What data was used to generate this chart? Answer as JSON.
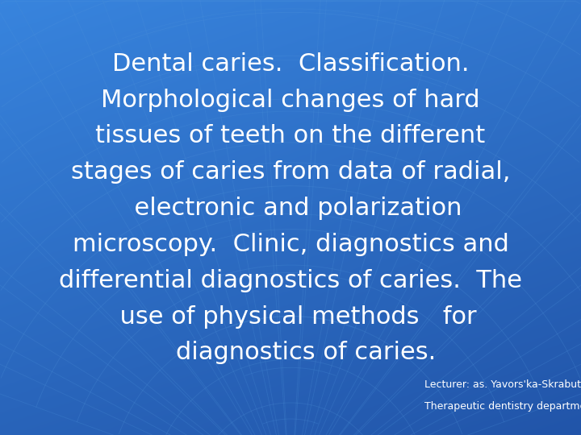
{
  "main_text_lines": [
    "Dental caries.  Classification.",
    "Morphological changes of hard",
    "tissues of teeth on the different",
    "stages of caries from data of radial,",
    "  electronic and polarization",
    "microscopy.  Clinic, diagnostics and",
    "differential diagnostics of caries.  The",
    "  use of physical methods   for",
    "    diagnostics of caries."
  ],
  "footnote_line1": "Lecturer: as. Yavors'ka-Skrabut I.M.",
  "footnote_line2": "Therapeutic dentistry department",
  "bg_color": "#1565C0",
  "bg_light": "#2486D9",
  "bg_dark": "#0D3B8C",
  "arc_color": "#3a7fd4",
  "text_color": "#FFFFFF",
  "footnote_color": "#FFFFFF",
  "main_fontsize": 22,
  "footnote_fontsize": 9,
  "fig_width": 7.2,
  "fig_height": 5.4
}
